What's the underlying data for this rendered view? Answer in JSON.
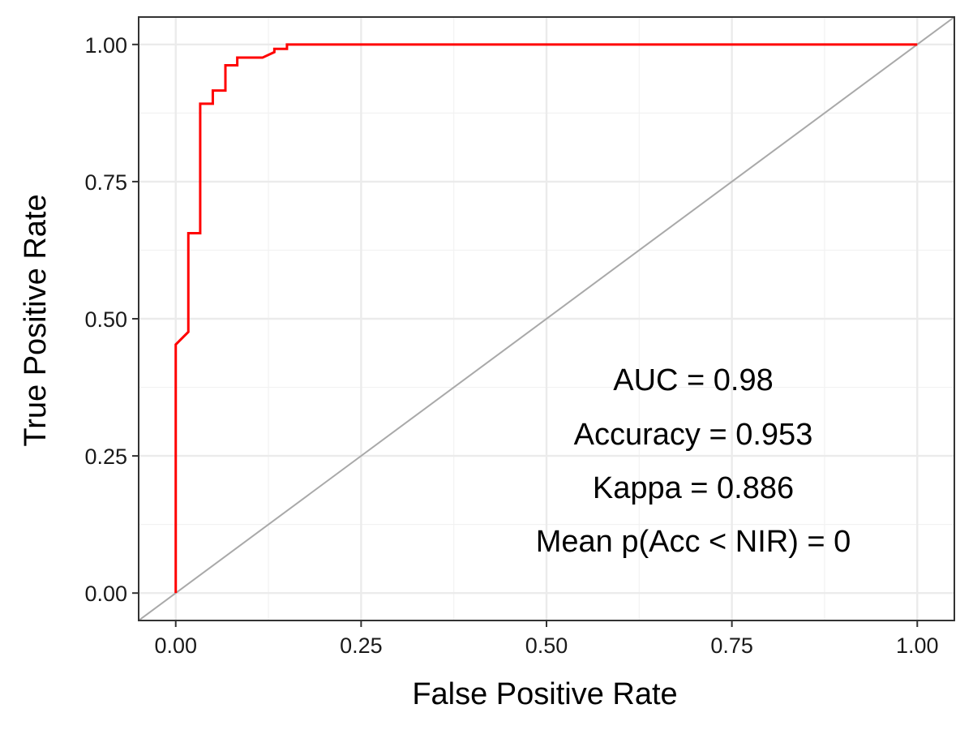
{
  "chart_data": {
    "type": "line",
    "title": "",
    "xlabel": "False Positive Rate",
    "ylabel": "True Positive Rate",
    "xlim": [
      -0.05,
      1.05
    ],
    "ylim": [
      -0.05,
      1.05
    ],
    "x_ticks": [
      0,
      0.25,
      0.5,
      0.75,
      1.0
    ],
    "y_ticks": [
      0,
      0.25,
      0.5,
      0.75,
      1.0
    ],
    "x_tick_labels": [
      "0.00",
      "0.25",
      "0.50",
      "0.75",
      "1.00"
    ],
    "y_tick_labels": [
      "0.00",
      "0.25",
      "0.50",
      "0.75",
      "1.00"
    ],
    "grid": true,
    "legend": "none",
    "series": [
      {
        "color": "#ff0000",
        "x": [
          0.0,
          0.0,
          0.017,
          0.017,
          0.033,
          0.033,
          0.05,
          0.05,
          0.067,
          0.067,
          0.083,
          0.083,
          0.1,
          0.117,
          0.133,
          0.133,
          0.15,
          0.15,
          1.0
        ],
        "y": [
          0.0,
          0.453,
          0.476,
          0.656,
          0.656,
          0.892,
          0.892,
          0.916,
          0.916,
          0.962,
          0.962,
          0.976,
          0.976,
          0.976,
          0.986,
          0.992,
          0.992,
          1.0,
          1.0
        ]
      },
      {
        "color": "#a9a9a9",
        "x": [
          -0.05,
          1.05
        ],
        "y": [
          -0.05,
          1.05
        ]
      }
    ],
    "annotations": [
      "AUC = 0.98",
      "Accuracy = 0.953",
      "Kappa = 0.886",
      "Mean p(Acc < NIR) = 0"
    ]
  }
}
